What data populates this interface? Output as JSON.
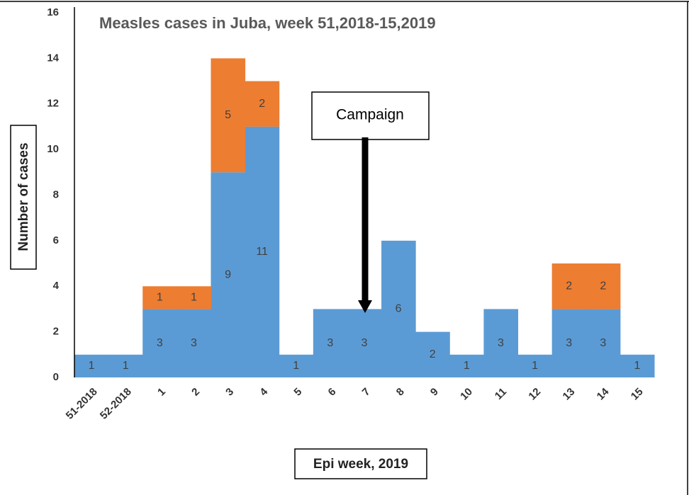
{
  "chart_data": {
    "type": "bar",
    "stacked": true,
    "title": "Measles cases in Juba, week 51,2018-15,2019",
    "x_label": "Epi week, 2019",
    "y_label": "Number of cases",
    "annotation": "Campaign",
    "categories": [
      "51-2018",
      "52-2018",
      "1",
      "2",
      "3",
      "4",
      "5",
      "6",
      "7",
      "8",
      "9",
      "10",
      "11",
      "12",
      "13",
      "14",
      "15"
    ],
    "series": [
      {
        "color": "#5b9bd5",
        "values": [
          1,
          1,
          3,
          3,
          9,
          11,
          1,
          3,
          3,
          6,
          2,
          1,
          3,
          1,
          3,
          3,
          1
        ]
      },
      {
        "color": "#ed7d31",
        "values": [
          null,
          null,
          1,
          1,
          5,
          2,
          null,
          null,
          null,
          null,
          null,
          null,
          null,
          null,
          2,
          2,
          null
        ]
      }
    ],
    "ylim": [
      0,
      16
    ],
    "yticks": [
      0,
      2,
      4,
      6,
      8,
      10,
      12,
      14,
      16
    ],
    "grid": false
  }
}
